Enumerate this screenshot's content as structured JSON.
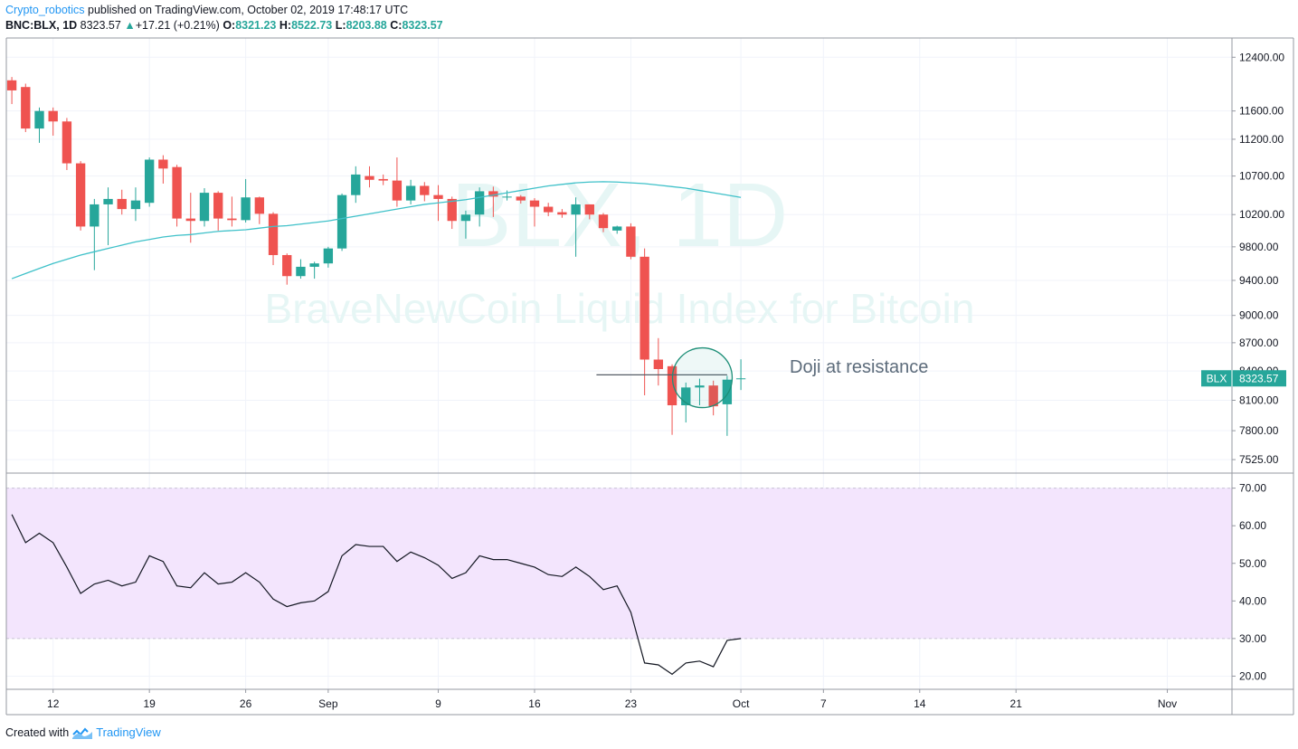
{
  "header": {
    "author": "Crypto_robotics",
    "published_text": " published on TradingView.com, October 02, 2019 17:48:17 UTC",
    "symbol_interval": "BNC:BLX, 1D",
    "last": "8323.57",
    "change_arrow": "▲",
    "change": "+17.21 (+0.21%)",
    "open_label": "O:",
    "open": "8321.23",
    "high_label": "H:",
    "high": "8522.73",
    "low_label": "L:",
    "low": "8203.88",
    "close_label": "C:",
    "close": "8323.57"
  },
  "footer": {
    "created_with": "Created with",
    "brand": "TradingView"
  },
  "colors": {
    "up": "#26a69a",
    "down": "#ef5350",
    "ma": "#3fc1c9",
    "rsi": "#131722",
    "rsi_band": "#f3e5fd",
    "accent": "#2196f3"
  },
  "watermark": {
    "symbol": "BLX, 1D",
    "description": "BraveNewCoin Liquid Index for Bitcoin"
  },
  "annotation": {
    "text": "Doji at resistance",
    "resistance_level": 8360,
    "circle_date_index": 50,
    "circle_price": 8330,
    "line_from_index": 42.5,
    "line_to_index": 52
  },
  "price_tag": {
    "symbol": "BLX",
    "value": "8323.57",
    "price": 8323.57
  },
  "chart_data": [
    {
      "type": "candlestick",
      "scale": "log",
      "ylim": [
        7400,
        12700
      ],
      "y_ticks": [
        "12400.00",
        "11600.00",
        "11200.00",
        "10700.00",
        "10200.00",
        "9800.00",
        "9400.00",
        "9000.00",
        "8700.00",
        "8400.00",
        "8100.00",
        "7800.00",
        "7525.00"
      ],
      "x_labels": [
        {
          "label": "12",
          "index": 3
        },
        {
          "label": "19",
          "index": 10
        },
        {
          "label": "26",
          "index": 17
        },
        {
          "label": "Sep",
          "index": 23
        },
        {
          "label": "9",
          "index": 31
        },
        {
          "label": "16",
          "index": 38
        },
        {
          "label": "23",
          "index": 45
        },
        {
          "label": "Oct",
          "index": 53
        },
        {
          "label": "7",
          "index": 59
        },
        {
          "label": "14",
          "index": 66
        },
        {
          "label": "21",
          "index": 73
        },
        {
          "label": "Nov",
          "index": 84
        }
      ],
      "x_range": [
        -0.4,
        88.7
      ],
      "candles": [
        {
          "o": 12050,
          "h": 12100,
          "l": 11700,
          "c": 11900
        },
        {
          "o": 11950,
          "h": 12000,
          "l": 11300,
          "c": 11350
        },
        {
          "o": 11350,
          "h": 11650,
          "l": 11150,
          "c": 11600
        },
        {
          "o": 11600,
          "h": 11650,
          "l": 11250,
          "c": 11450
        },
        {
          "o": 11450,
          "h": 11500,
          "l": 10780,
          "c": 10870
        },
        {
          "o": 10870,
          "h": 10900,
          "l": 10000,
          "c": 10050
        },
        {
          "o": 10050,
          "h": 10400,
          "l": 9520,
          "c": 10330
        },
        {
          "o": 10330,
          "h": 10550,
          "l": 9820,
          "c": 10400
        },
        {
          "o": 10400,
          "h": 10520,
          "l": 10200,
          "c": 10270
        },
        {
          "o": 10270,
          "h": 10550,
          "l": 10120,
          "c": 10380
        },
        {
          "o": 10350,
          "h": 10950,
          "l": 10300,
          "c": 10920
        },
        {
          "o": 10920,
          "h": 10980,
          "l": 10600,
          "c": 10800
        },
        {
          "o": 10820,
          "h": 10850,
          "l": 10050,
          "c": 10150
        },
        {
          "o": 10150,
          "h": 10480,
          "l": 9850,
          "c": 10120
        },
        {
          "o": 10120,
          "h": 10540,
          "l": 10050,
          "c": 10480
        },
        {
          "o": 10480,
          "h": 10500,
          "l": 10000,
          "c": 10150
        },
        {
          "o": 10150,
          "h": 10430,
          "l": 10050,
          "c": 10130
        },
        {
          "o": 10130,
          "h": 10660,
          "l": 10100,
          "c": 10420
        },
        {
          "o": 10420,
          "h": 10430,
          "l": 10080,
          "c": 10210
        },
        {
          "o": 10210,
          "h": 10230,
          "l": 9580,
          "c": 9700
        },
        {
          "o": 9700,
          "h": 9720,
          "l": 9350,
          "c": 9450
        },
        {
          "o": 9450,
          "h": 9650,
          "l": 9420,
          "c": 9560
        },
        {
          "o": 9560,
          "h": 9620,
          "l": 9420,
          "c": 9600
        },
        {
          "o": 9600,
          "h": 9800,
          "l": 9550,
          "c": 9780
        },
        {
          "o": 9780,
          "h": 10470,
          "l": 9750,
          "c": 10450
        },
        {
          "o": 10450,
          "h": 10830,
          "l": 10350,
          "c": 10720
        },
        {
          "o": 10700,
          "h": 10830,
          "l": 10550,
          "c": 10650
        },
        {
          "o": 10660,
          "h": 10720,
          "l": 10580,
          "c": 10640
        },
        {
          "o": 10640,
          "h": 10950,
          "l": 10300,
          "c": 10380
        },
        {
          "o": 10380,
          "h": 10650,
          "l": 10330,
          "c": 10570
        },
        {
          "o": 10570,
          "h": 10620,
          "l": 10370,
          "c": 10450
        },
        {
          "o": 10450,
          "h": 10580,
          "l": 10120,
          "c": 10400
        },
        {
          "o": 10400,
          "h": 10430,
          "l": 10020,
          "c": 10120
        },
        {
          "o": 10120,
          "h": 10250,
          "l": 9900,
          "c": 10200
        },
        {
          "o": 10200,
          "h": 10550,
          "l": 10050,
          "c": 10500
        },
        {
          "o": 10500,
          "h": 10560,
          "l": 10170,
          "c": 10430
        },
        {
          "o": 10430,
          "h": 10510,
          "l": 10380,
          "c": 10430
        },
        {
          "o": 10430,
          "h": 10450,
          "l": 10340,
          "c": 10380
        },
        {
          "o": 10380,
          "h": 10410,
          "l": 10050,
          "c": 10300
        },
        {
          "o": 10300,
          "h": 10350,
          "l": 10180,
          "c": 10230
        },
        {
          "o": 10230,
          "h": 10270,
          "l": 10160,
          "c": 10200
        },
        {
          "o": 10200,
          "h": 10420,
          "l": 9680,
          "c": 10330
        },
        {
          "o": 10330,
          "h": 10330,
          "l": 10140,
          "c": 10200
        },
        {
          "o": 10200,
          "h": 10220,
          "l": 9980,
          "c": 10030
        },
        {
          "o": 10000,
          "h": 10060,
          "l": 9960,
          "c": 10050
        },
        {
          "o": 10050,
          "h": 10090,
          "l": 9650,
          "c": 9680
        },
        {
          "o": 9680,
          "h": 9780,
          "l": 8150,
          "c": 8520
        },
        {
          "o": 8520,
          "h": 8750,
          "l": 8250,
          "c": 8420
        },
        {
          "o": 8450,
          "h": 8470,
          "l": 7760,
          "c": 8050
        },
        {
          "o": 8050,
          "h": 8280,
          "l": 7880,
          "c": 8230
        },
        {
          "o": 8230,
          "h": 8320,
          "l": 8050,
          "c": 8250
        },
        {
          "o": 8250,
          "h": 8300,
          "l": 7950,
          "c": 8040
        },
        {
          "o": 8060,
          "h": 8350,
          "l": 7750,
          "c": 8310
        },
        {
          "o": 8321.23,
          "h": 8522.73,
          "l": 8203.88,
          "c": 8323.57
        }
      ],
      "ma": [
        9420,
        9480,
        9540,
        9600,
        9650,
        9700,
        9740,
        9780,
        9820,
        9860,
        9890,
        9920,
        9940,
        9950,
        9970,
        9990,
        10000,
        10010,
        10030,
        10050,
        10060,
        10080,
        10100,
        10120,
        10150,
        10180,
        10210,
        10240,
        10270,
        10300,
        10330,
        10350,
        10370,
        10390,
        10420,
        10450,
        10480,
        10510,
        10540,
        10570,
        10590,
        10610,
        10620,
        10625,
        10620,
        10610,
        10600,
        10580,
        10560,
        10540,
        10510,
        10480,
        10450,
        10420
      ]
    },
    {
      "type": "line",
      "name": "",
      "ylim": [
        16.5,
        74
      ],
      "y_ticks": [
        "70.00",
        "60.00",
        "50.00",
        "40.00",
        "30.00",
        "20.00"
      ],
      "band": [
        30,
        70
      ],
      "values": [
        63,
        55.5,
        58,
        55.5,
        49,
        42,
        44.5,
        45.5,
        44,
        45,
        52,
        50.5,
        44,
        43.5,
        47.5,
        44.5,
        45,
        47.5,
        45,
        40.5,
        38.5,
        39.5,
        40,
        42.5,
        52,
        55,
        54.5,
        54.5,
        50.5,
        53,
        51.5,
        49.5,
        46,
        47.5,
        52,
        51,
        51,
        50,
        49,
        47,
        46.5,
        49,
        46.5,
        43,
        44,
        37,
        23.5,
        23,
        20.5,
        23.5,
        24,
        22.5,
        29.5,
        30
      ]
    }
  ]
}
